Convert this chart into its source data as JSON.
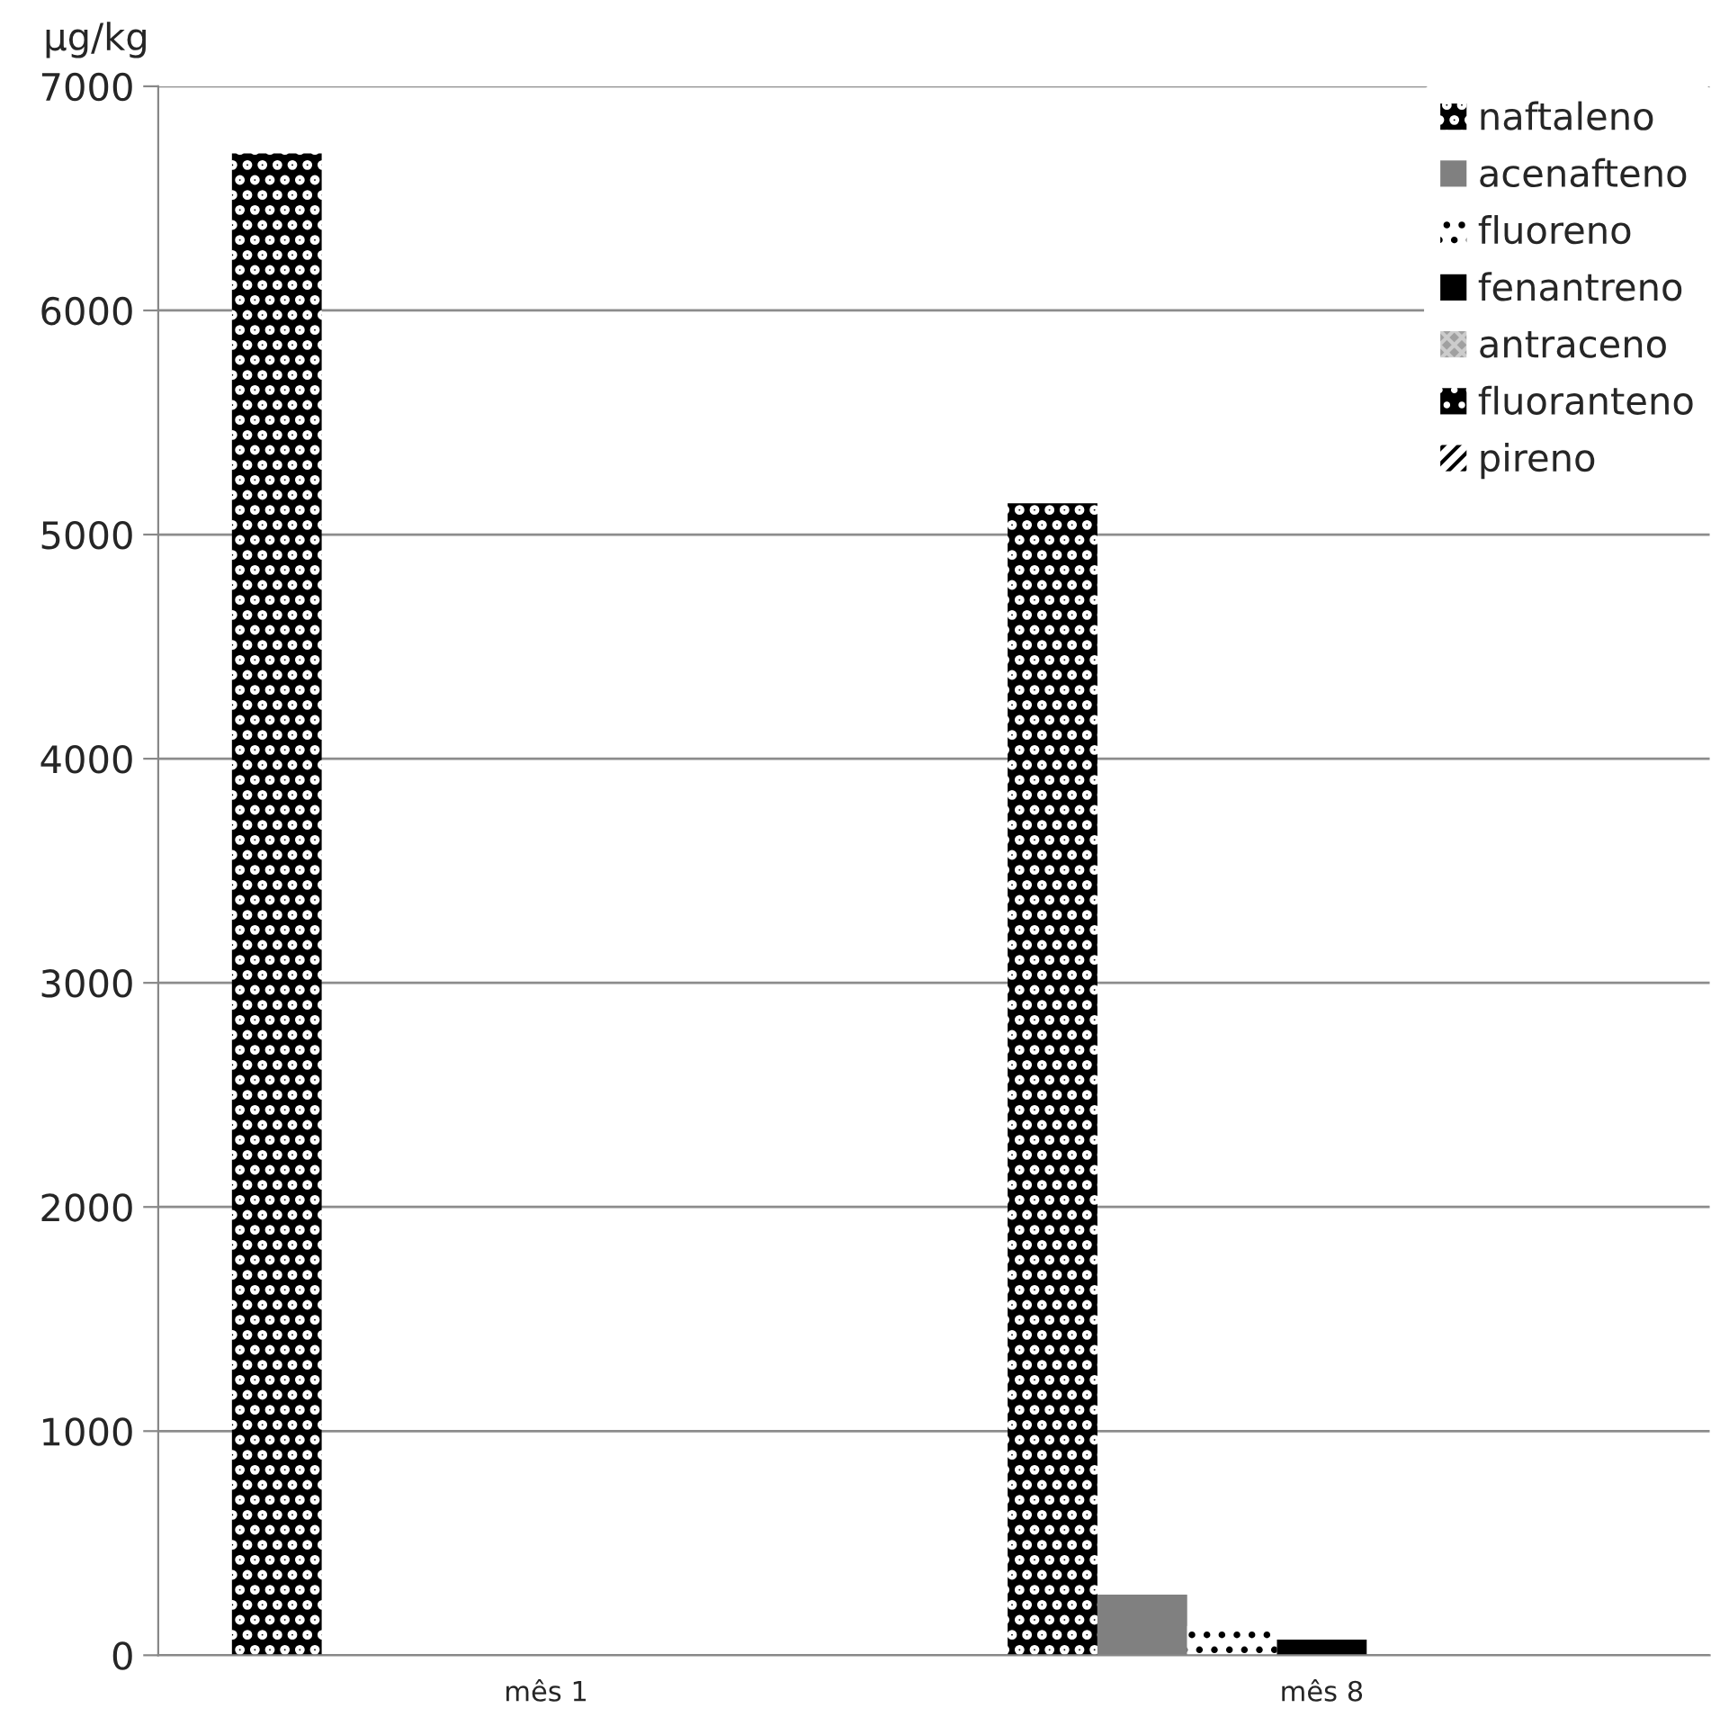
{
  "chart_data": {
    "type": "bar",
    "ylabel": "µg/kg",
    "categories": [
      "mês 1",
      "mês 8"
    ],
    "series": [
      {
        "name": "naftaleno",
        "color": "#000000",
        "values": [
          6700,
          5140
        ]
      },
      {
        "name": "acenafteno",
        "color": "#808080",
        "values": [
          0,
          270
        ]
      },
      {
        "name": "fluoreno",
        "color": "#ffffff",
        "values": [
          0,
          130
        ]
      },
      {
        "name": "fenantreno",
        "color": "#000000",
        "values": [
          0,
          70
        ]
      },
      {
        "name": "antraceno",
        "color": "#a0a0a0",
        "values": [
          0,
          0
        ]
      },
      {
        "name": "fluoranteno",
        "color": "#000000",
        "values": [
          0,
          0
        ]
      },
      {
        "name": "pireno",
        "color": "#ffffff",
        "values": [
          0,
          0
        ]
      }
    ],
    "ylim": [
      0,
      7000
    ],
    "yticks": [
      0,
      1000,
      2000,
      3000,
      4000,
      5000,
      6000,
      7000
    ],
    "grid": "y",
    "legend": "top right"
  }
}
